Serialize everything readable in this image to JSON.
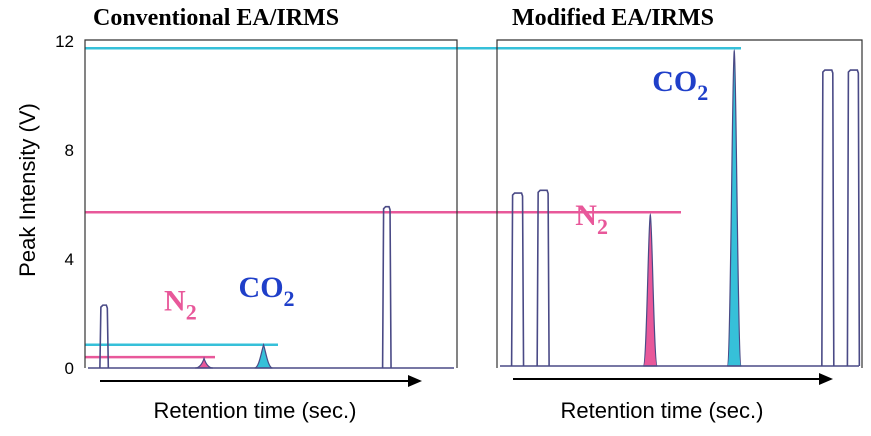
{
  "colors": {
    "trace": "#4a4a86",
    "n2": "#e8589a",
    "co2": "#36c0d9",
    "co2_label": "#1f3fc9",
    "frame": "#333333"
  },
  "y_axis": {
    "label": "Peak Intensity (V)",
    "ticks": [
      "0",
      "4",
      "8",
      "12"
    ]
  },
  "chart_data": [
    {
      "type": "line",
      "title": "Conventional EA/IRMS",
      "xlabel": "Retention time (sec.)",
      "ylabel": "Peak Intensity (V)",
      "ylim": [
        0,
        12
      ],
      "x_scale": [
        0,
        100
      ],
      "peaks": [
        {
          "kind": "reference",
          "x": [
            4,
            6
          ],
          "height": 2.3
        },
        {
          "kind": "N2",
          "x": 32,
          "height": 0.35
        },
        {
          "kind": "CO2",
          "x": 48,
          "height": 0.85
        },
        {
          "kind": "reference",
          "x": [
            80,
            82
          ],
          "height": 5.9
        }
      ],
      "level_lines": [
        {
          "gas": "N2",
          "value": 0.4
        },
        {
          "gas": "CO2",
          "value": 0.85
        }
      ],
      "annotations": [
        {
          "base": "N",
          "sub": "2",
          "gas": "N2"
        },
        {
          "base": "CO",
          "sub": "2",
          "gas": "CO2"
        }
      ]
    },
    {
      "type": "line",
      "title": "Modified EA/IRMS",
      "xlabel": "Retention time (sec.)",
      "ylabel": "",
      "ylim": [
        0,
        12
      ],
      "x_scale": [
        0,
        100
      ],
      "peaks": [
        {
          "kind": "reference",
          "x": [
            4,
            7
          ],
          "height": 6.4
        },
        {
          "kind": "reference",
          "x": [
            11,
            14
          ],
          "height": 6.5
        },
        {
          "kind": "N2",
          "x": 42,
          "height": 5.6
        },
        {
          "kind": "CO2",
          "x": 65,
          "height": 11.6
        },
        {
          "kind": "reference",
          "x": [
            89,
            92
          ],
          "height": 10.9
        },
        {
          "kind": "reference",
          "x": [
            96,
            99
          ],
          "height": 10.9
        }
      ],
      "level_lines": [
        {
          "gas": "N2",
          "value": 5.7
        },
        {
          "gas": "CO2",
          "value": 11.7
        }
      ],
      "annotations": [
        {
          "base": "N",
          "sub": "2",
          "gas": "N2"
        },
        {
          "base": "CO",
          "sub": "2",
          "gas": "CO2"
        }
      ]
    }
  ]
}
